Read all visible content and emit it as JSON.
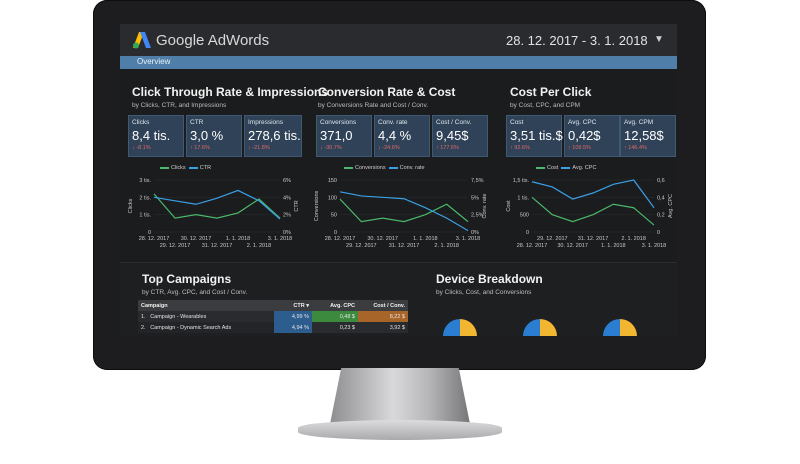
{
  "app": {
    "brand": "Google AdWords",
    "date_range": "28. 12. 2017 - 3. 1. 2018",
    "tab": "Overview"
  },
  "sections": {
    "ctr": {
      "title": "Click Through Rate & Impressions",
      "subtitle": "by Clicks, CTR, and Impressions"
    },
    "conv": {
      "title": "Conversion Rate & Cost",
      "subtitle": "by Conversions Rate and Cost / Conv."
    },
    "cpc": {
      "title": "Cost Per Click",
      "subtitle": "by Cost, CPC, and CPM"
    },
    "campaigns": {
      "title": "Top Campaigns",
      "subtitle": "by CTR, Avg. CPC, and Cost / Conv."
    },
    "device": {
      "title": "Device Breakdown",
      "subtitle": "by Clicks, Cost, and Conversions"
    }
  },
  "kpis": [
    {
      "label": "Clicks",
      "value": "8,4 tis.",
      "delta": "-8.1%"
    },
    {
      "label": "CTR",
      "value": "3,0 %",
      "delta": "17.6%"
    },
    {
      "label": "Impressions",
      "value": "278,6 tis.",
      "delta": "-21.8%"
    },
    {
      "label": "Conversions",
      "value": "371,0",
      "delta": "-30.7%"
    },
    {
      "label": "Conv. rate",
      "value": "4,4 %",
      "delta": "-24.6%"
    },
    {
      "label": "Cost / Conv.",
      "value": "9,45$",
      "delta": "177.6%"
    },
    {
      "label": "Cost",
      "value": "3,51 tis.$",
      "delta": "92.6%"
    },
    {
      "label": "Avg. CPC",
      "value": "0,42$",
      "delta": "109.5%"
    },
    {
      "label": "Avg. CPM",
      "value": "12,58$",
      "delta": "146.4%"
    }
  ],
  "colors": {
    "series_a": "#4bb86a",
    "series_b": "#3aa0e6",
    "accent": "#4f7fa9",
    "bg": "#1b1c1e"
  },
  "chart_data": [
    {
      "type": "line",
      "x": [
        "28. 12. 2017",
        "29. 12. 2017",
        "30. 12. 2017",
        "31. 12. 2017",
        "1. 1. 2018",
        "2. 1. 2018",
        "3. 1. 2018"
      ],
      "x_ticks_top": [
        "28. 12. 2017",
        "30. 12. 2017",
        "1. 1. 2018",
        "3. 1. 2018"
      ],
      "x_ticks_bottom": [
        "29. 12. 2017",
        "31. 12. 2017",
        "2. 1. 2018"
      ],
      "series": [
        {
          "name": "Clicks",
          "values": [
            2200,
            800,
            1000,
            800,
            1100,
            1900,
            800
          ]
        },
        {
          "name": "CTR",
          "values": [
            4.0,
            3.6,
            3.2,
            3.9,
            4.8,
            3.6,
            1.5
          ]
        }
      ],
      "ylabel": "Clicks",
      "ylabel_right": "CTR",
      "y_ticks": [
        "3 tis.",
        "2 tis.",
        "1 tis.",
        "0"
      ],
      "y2_ticks": [
        "6%",
        "4%",
        "2%",
        "0%"
      ],
      "ylim": [
        0,
        3000
      ],
      "y2lim": [
        0,
        6
      ]
    },
    {
      "type": "line",
      "x": [
        "28. 12. 2017",
        "29. 12. 2017",
        "30. 12. 2017",
        "31. 12. 2017",
        "1. 1. 2018",
        "2. 1. 2018",
        "3. 1. 2018"
      ],
      "x_ticks_top": [
        "28. 12. 2017",
        "30. 12. 2017",
        "1. 1. 2018",
        "3. 1. 2018"
      ],
      "x_ticks_bottom": [
        "29. 12. 2017",
        "31. 12. 2017",
        "2. 1. 2018"
      ],
      "series": [
        {
          "name": "Conversions",
          "values": [
            95,
            30,
            40,
            30,
            50,
            80,
            30
          ]
        },
        {
          "name": "Conv. rate",
          "values": [
            5.8,
            5.2,
            5.0,
            4.8,
            3.5,
            2.0,
            0.2
          ]
        }
      ],
      "ylabel": "Conversions",
      "ylabel_right": "Conv. rate",
      "y_ticks": [
        "150",
        "100",
        "50",
        "0"
      ],
      "y2_ticks": [
        "7,5%",
        "5%",
        "2,5%",
        "0%"
      ],
      "ylim": [
        0,
        150
      ],
      "y2lim": [
        0,
        7.5
      ]
    },
    {
      "type": "line",
      "x": [
        "28. 12. 2017",
        "29. 12. 2017",
        "30. 12. 2017",
        "31. 12. 2017",
        "1. 1. 2018",
        "2. 1. 2018",
        "3. 1. 2018"
      ],
      "x_ticks_top": [
        "29. 12. 2017",
        "31. 12. 2017",
        "2. 1. 2018"
      ],
      "x_ticks_bottom": [
        "28. 12. 2017",
        "30. 12. 2017",
        "1. 1. 2018",
        "3. 1. 2018"
      ],
      "series": [
        {
          "name": "Cost",
          "values": [
            1.0,
            0.5,
            0.3,
            0.5,
            0.8,
            0.7,
            0.2
          ]
        },
        {
          "name": "Avg. CPC",
          "values": [
            0.58,
            0.52,
            0.38,
            0.45,
            0.55,
            0.6,
            0.28
          ]
        }
      ],
      "ylabel": "Cost",
      "ylabel_right": "Avg. CPC",
      "y_ticks": [
        "1,5 tis.",
        "1 tis.",
        "500",
        "0"
      ],
      "y2_ticks": [
        "0,6",
        "0,4",
        "0,2",
        "0"
      ],
      "ylim": [
        0,
        1.5
      ],
      "y2lim": [
        0,
        0.6
      ]
    }
  ],
  "campaigns_table": {
    "headers": [
      "Campaign",
      "CTR",
      "Avg. CPC",
      "Cost / Conv."
    ],
    "rows": [
      {
        "idx": "1.",
        "name": "Campaign - Wearables",
        "ctr": "4,99 %",
        "cpc": "0,48 $",
        "cost": "8,22 $"
      },
      {
        "idx": "2.",
        "name": "Campaign - Dynamic Search Ads",
        "ctr": "4,94 %",
        "cpc": "0,23 $",
        "cost": "3,92 $"
      }
    ]
  }
}
